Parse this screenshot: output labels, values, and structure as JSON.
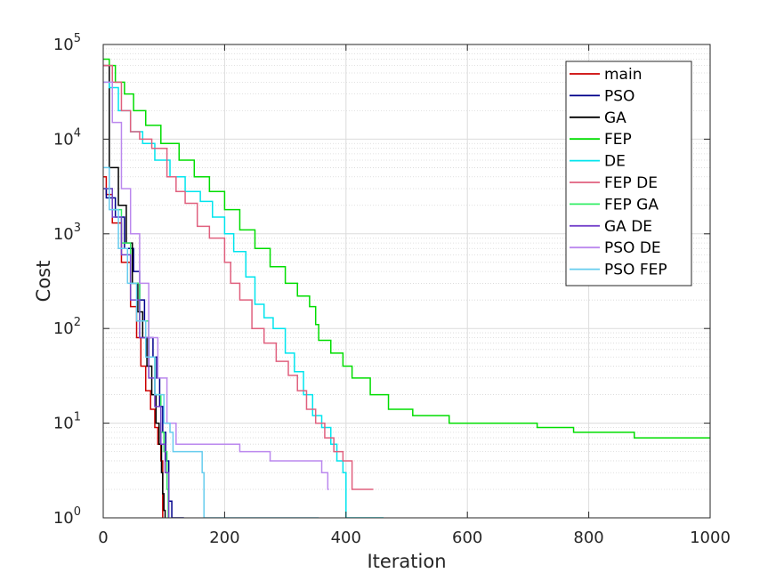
{
  "chart_data": {
    "type": "line",
    "xlabel": "Iteration",
    "ylabel": "Cost",
    "xlim": [
      0,
      1000
    ],
    "ylim": [
      1,
      100000
    ],
    "yscale": "log",
    "grid": true,
    "minor_grid": true,
    "legend_position": "top-right",
    "x_ticks": [
      {
        "value": 0,
        "label": "0"
      },
      {
        "value": 200,
        "label": "200"
      },
      {
        "value": 400,
        "label": "400"
      },
      {
        "value": 600,
        "label": "600"
      },
      {
        "value": 800,
        "label": "800"
      },
      {
        "value": 1000,
        "label": "1000"
      }
    ],
    "y_ticks": [
      {
        "value": 1,
        "base": "10",
        "exp": "0"
      },
      {
        "value": 10,
        "base": "10",
        "exp": "1"
      },
      {
        "value": 100,
        "base": "10",
        "exp": "2"
      },
      {
        "value": 1000,
        "base": "10",
        "exp": "3"
      },
      {
        "value": 10000,
        "base": "10",
        "exp": "4"
      },
      {
        "value": 100000,
        "base": "10",
        "exp": "5"
      }
    ],
    "series": [
      {
        "name": "main",
        "color": "#cc0000",
        "x": [
          0,
          5,
          15,
          30,
          45,
          55,
          62,
          70,
          78,
          85,
          90,
          95,
          98
        ],
        "y": [
          4000,
          2600,
          1300,
          500,
          170,
          80,
          40,
          22,
          14,
          9,
          6,
          4,
          1
        ]
      },
      {
        "name": "PSO",
        "color": "#00008b",
        "x": [
          0,
          5,
          20,
          35,
          50,
          60,
          68,
          75,
          82,
          88,
          93,
          98,
          103,
          108,
          113,
          120,
          133
        ],
        "y": [
          3000,
          2400,
          1500,
          700,
          400,
          200,
          120,
          80,
          50,
          30,
          15,
          8,
          4,
          1.5,
          1,
          1,
          1
        ]
      },
      {
        "name": "GA",
        "color": "#000000",
        "x": [
          0,
          10,
          25,
          38,
          48,
          57,
          65,
          72,
          80,
          87,
          92,
          96,
          98,
          100,
          102
        ],
        "y": [
          60000,
          5000,
          2000,
          800,
          300,
          150,
          80,
          40,
          20,
          10,
          6,
          3,
          1.8,
          1.2,
          1
        ]
      },
      {
        "name": "FEP",
        "color": "#00dd00",
        "x": [
          0,
          10,
          20,
          35,
          50,
          70,
          95,
          125,
          150,
          175,
          200,
          225,
          250,
          275,
          300,
          320,
          340,
          350,
          355,
          375,
          395,
          410,
          440,
          470,
          510,
          570,
          715,
          775,
          875,
          1000
        ],
        "y": [
          70000,
          60000,
          40000,
          30000,
          20000,
          14000,
          9000,
          6000,
          4000,
          2800,
          1800,
          1100,
          700,
          450,
          300,
          220,
          170,
          110,
          75,
          55,
          40,
          30,
          20,
          14,
          12,
          10,
          9,
          8,
          7,
          7
        ]
      },
      {
        "name": "DE",
        "color": "#00e5ee",
        "x": [
          0,
          10,
          25,
          45,
          65,
          85,
          110,
          135,
          160,
          180,
          200,
          215,
          235,
          250,
          265,
          280,
          300,
          315,
          330,
          345,
          360,
          375,
          385,
          395,
          400,
          415,
          462
        ],
        "y": [
          40000,
          35000,
          20000,
          12000,
          9000,
          6000,
          4000,
          2800,
          2200,
          1500,
          1000,
          650,
          350,
          180,
          130,
          100,
          55,
          35,
          20,
          12,
          9,
          6,
          4,
          3,
          1,
          1,
          1
        ]
      },
      {
        "name": "FEP DE",
        "color": "#e0607e",
        "x": [
          0,
          15,
          30,
          45,
          60,
          80,
          105,
          120,
          135,
          155,
          175,
          200,
          210,
          225,
          245,
          265,
          285,
          305,
          320,
          335,
          350,
          365,
          380,
          395,
          410,
          430,
          445
        ],
        "y": [
          60000,
          40000,
          20000,
          12000,
          10000,
          8000,
          4000,
          2800,
          2100,
          1200,
          900,
          500,
          300,
          200,
          100,
          70,
          45,
          32,
          22,
          14,
          10,
          7,
          5,
          4,
          2,
          2,
          2
        ]
      },
      {
        "name": "FEP GA",
        "color": "#33ee66",
        "x": [
          0,
          15,
          30,
          45,
          60,
          75,
          85,
          95,
          100,
          105,
          107
        ],
        "y": [
          3000,
          1800,
          800,
          300,
          120,
          50,
          20,
          8,
          5,
          2,
          1
        ]
      },
      {
        "name": "GA DE",
        "color": "#7744cc",
        "x": [
          0,
          15,
          30,
          45,
          60,
          75,
          85,
          95,
          102,
          108
        ],
        "y": [
          3000,
          1500,
          600,
          200,
          80,
          30,
          15,
          6,
          3,
          1
        ]
      },
      {
        "name": "PSO DE",
        "color": "#bb88ee",
        "x": [
          0,
          15,
          30,
          45,
          60,
          75,
          90,
          105,
          120,
          150,
          195,
          225,
          255,
          275,
          335,
          360,
          370,
          372
        ],
        "y": [
          40000,
          15000,
          3000,
          1000,
          300,
          80,
          30,
          10,
          6,
          6,
          6,
          5,
          5,
          4,
          4,
          3,
          2,
          2
        ]
      },
      {
        "name": "PSO FEP",
        "color": "#66ccee",
        "x": [
          0,
          10,
          25,
          40,
          55,
          70,
          85,
          100,
          110,
          115,
          150,
          160,
          163,
          166,
          200,
          300,
          355
        ],
        "y": [
          5000,
          1800,
          700,
          300,
          120,
          50,
          20,
          10,
          8,
          5,
          5,
          5,
          3,
          1,
          1,
          1,
          1
        ]
      }
    ]
  }
}
